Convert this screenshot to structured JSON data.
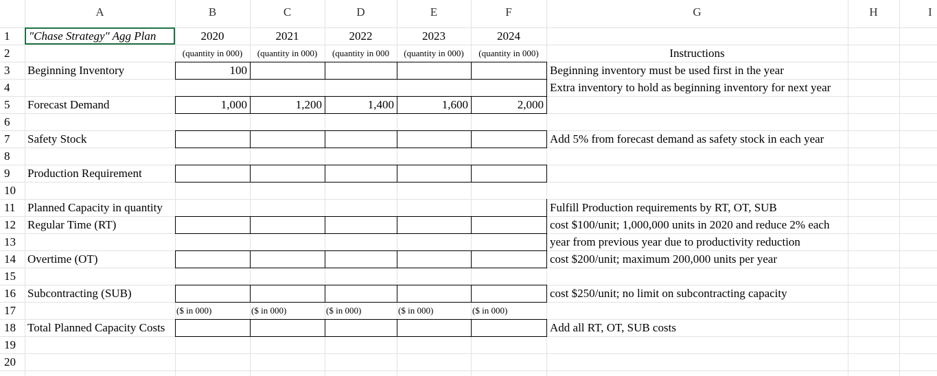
{
  "columns": [
    "A",
    "B",
    "C",
    "D",
    "E",
    "F",
    "G",
    "H",
    "I"
  ],
  "rows": [
    {
      "number": "1",
      "cells": {
        "A": "\"Chase Strategy\" Agg Plan",
        "B": "2020",
        "C": "2021",
        "D": "2022",
        "E": "2023",
        "F": "2024"
      }
    },
    {
      "number": "2",
      "cells": {
        "B": "(quantity in 000)",
        "C": "(quantity in 000)",
        "D": "(quantity in 000",
        "E": "(quantity in 000)",
        "F": "(quantity in 000)",
        "G": "Instructions"
      }
    },
    {
      "number": "3",
      "cells": {
        "A": "Beginning Inventory",
        "B": "100",
        "G": "Beginning inventory must be used first in the year"
      }
    },
    {
      "number": "4",
      "cells": {
        "G": "Extra inventory to hold as beginning inventory for next year"
      }
    },
    {
      "number": "5",
      "cells": {
        "A": "Forecast Demand",
        "B": "1,000",
        "C": "1,200",
        "D": "1,400",
        "E": "1,600",
        "F": "2,000"
      }
    },
    {
      "number": "6",
      "cells": {}
    },
    {
      "number": "7",
      "cells": {
        "A": "Safety Stock",
        "G": "Add 5% from forecast demand as safety stock in each year"
      }
    },
    {
      "number": "8",
      "cells": {}
    },
    {
      "number": "9",
      "cells": {
        "A": "Production Requirement"
      }
    },
    {
      "number": "10",
      "cells": {}
    },
    {
      "number": "11",
      "cells": {
        "A": "Planned Capacity in quantity",
        "G": "Fulfill Production requirements by RT, OT, SUB"
      }
    },
    {
      "number": "12",
      "cells": {
        "A": "Regular Time (RT)",
        "G": "cost $100/unit; 1,000,000 units in 2020 and reduce 2% each"
      }
    },
    {
      "number": "13",
      "cells": {
        "G": "year from previous year due to productivity reduction"
      }
    },
    {
      "number": "14",
      "cells": {
        "A": "Overtime (OT)",
        "G": "cost $200/unit; maximum 200,000 units per year"
      }
    },
    {
      "number": "15",
      "cells": {}
    },
    {
      "number": "16",
      "cells": {
        "A": "Subcontracting (SUB)",
        "G": "cost $250/unit; no limit on subcontracting capacity"
      }
    },
    {
      "number": "17",
      "cells": {
        "B": "($ in 000)",
        "C": "($ in 000)",
        "D": "($ in 000)",
        "E": "($ in 000)",
        "F": "($ in 000)"
      }
    },
    {
      "number": "18",
      "cells": {
        "A": "Total Planned Capacity Costs",
        "G": "Add all RT, OT, SUB costs"
      }
    },
    {
      "number": "19",
      "cells": {}
    },
    {
      "number": "20",
      "cells": {}
    }
  ]
}
